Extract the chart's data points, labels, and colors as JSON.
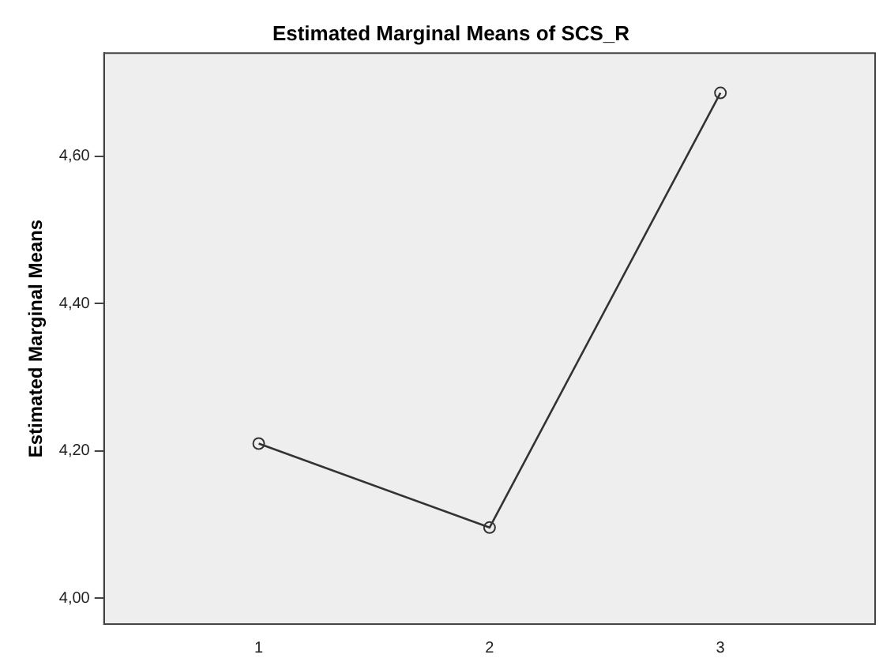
{
  "chart_data": {
    "type": "line",
    "title": "Estimated Marginal Means of SCS_R",
    "ylabel": "Estimated Marginal Means",
    "x": [
      1,
      2,
      3
    ],
    "series": [
      {
        "color": "#333333",
        "values": [
          4.21,
          4.096,
          4.686
        ]
      }
    ],
    "xlim": [
      0.33,
      3.67
    ],
    "xticks": [
      1,
      2,
      3
    ],
    "ylim": [
      3.965,
      4.74
    ],
    "yticks": [
      {
        "value": 4.0,
        "label": "4,00"
      },
      {
        "value": 4.2,
        "label": "4,20"
      },
      {
        "value": 4.4,
        "label": "4,40"
      },
      {
        "value": 4.6,
        "label": "4,60"
      }
    ],
    "marker": "circle",
    "line_style": "solid",
    "grid": false,
    "legend": false
  }
}
